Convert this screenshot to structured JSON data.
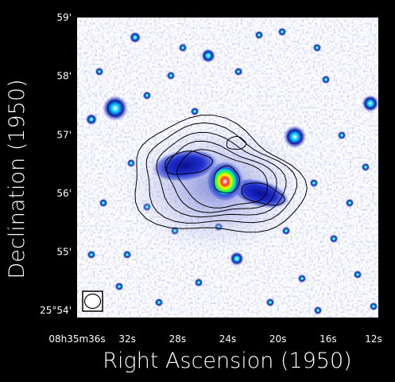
{
  "chart_data": {
    "type": "image",
    "xlabel": "Right Ascension (1950)",
    "ylabel": "Declination (1950)",
    "x_ticks": [
      {
        "label": "08h35m36s",
        "ra_seconds": 36
      },
      {
        "label": "32s",
        "ra_seconds": 32
      },
      {
        "label": "28s",
        "ra_seconds": 28
      },
      {
        "label": "24s",
        "ra_seconds": 24
      },
      {
        "label": "20s",
        "ra_seconds": 20
      },
      {
        "label": "16s",
        "ra_seconds": 16
      },
      {
        "label": "12s",
        "ra_seconds": 12
      }
    ],
    "y_ticks": [
      {
        "label": "59'",
        "dec_arcmin": 59
      },
      {
        "label": "58'",
        "dec_arcmin": 58
      },
      {
        "label": "57'",
        "dec_arcmin": 57
      },
      {
        "label": "56'",
        "dec_arcmin": 56
      },
      {
        "label": "55'",
        "dec_arcmin": 55
      },
      {
        "label": "25°54'",
        "dec_arcmin": 54
      }
    ],
    "colormap": [
      "#ffffff",
      "#b8c0e8",
      "#2838d8",
      "#1018a0",
      "#00c8ff",
      "#30ff30",
      "#ffff00",
      "#ff2020"
    ],
    "contour_color": "#000000",
    "beam_shown": true
  }
}
